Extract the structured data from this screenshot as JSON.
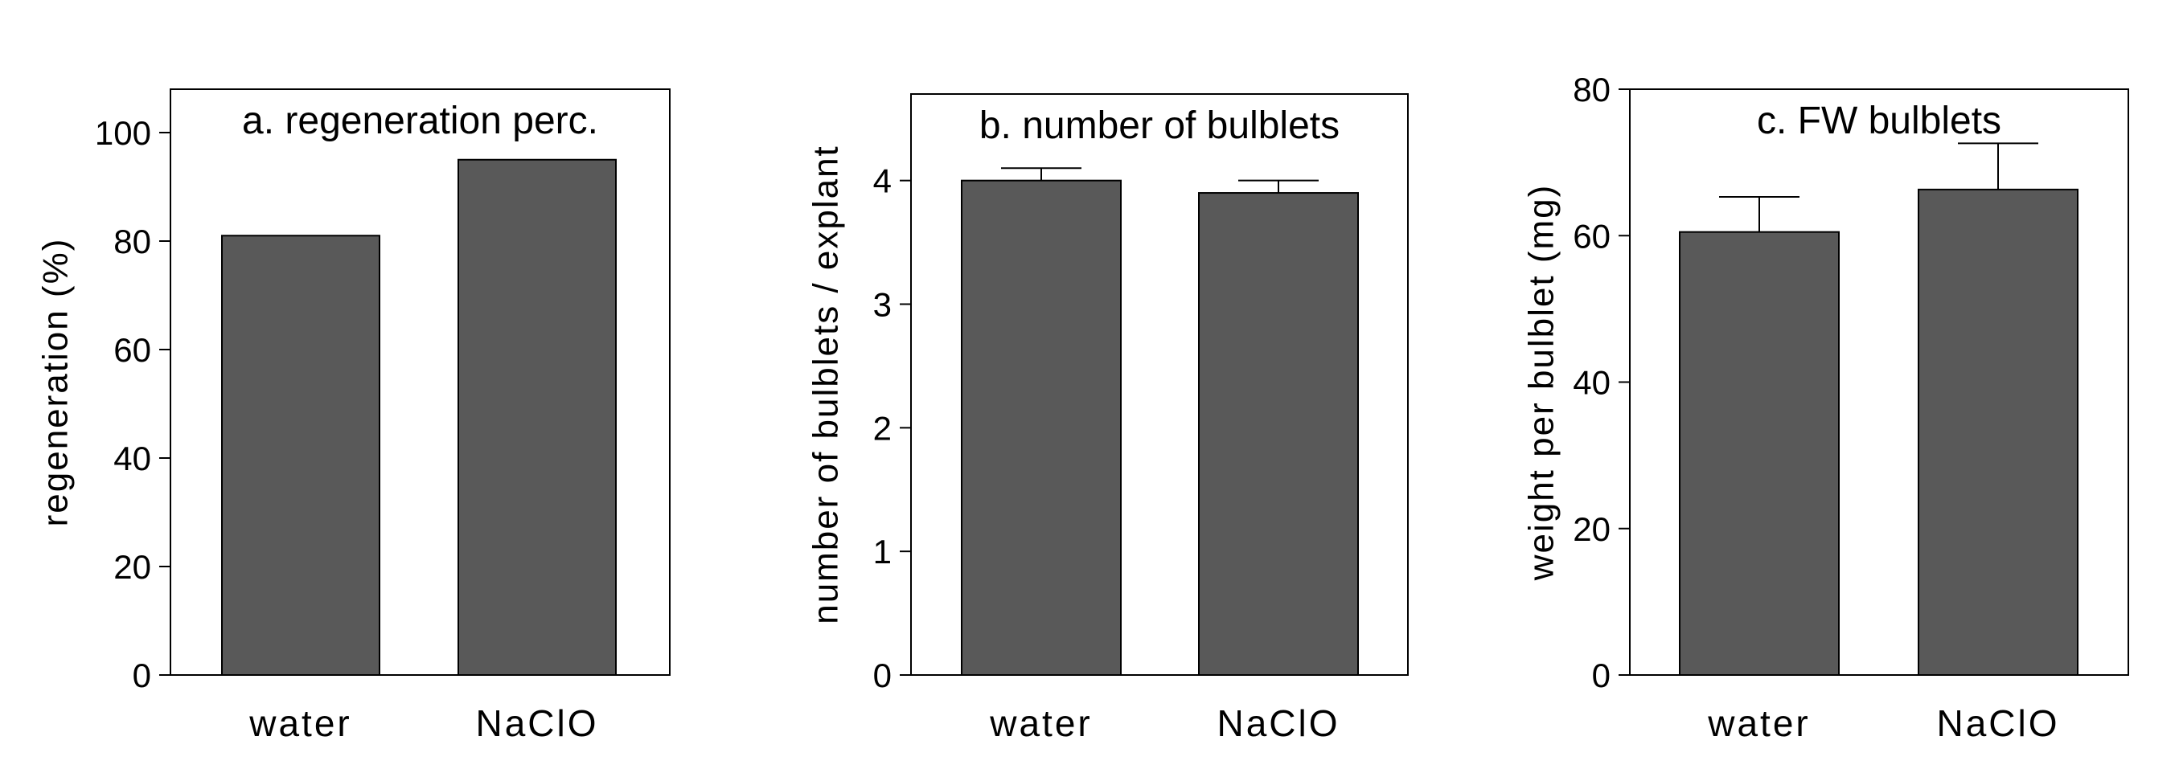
{
  "colors": {
    "bar": "#595959",
    "bar_edge": "#000000",
    "axis": "#000000",
    "background": "#ffffff"
  },
  "chart_data": [
    {
      "type": "bar",
      "title": "a. regeneration perc.",
      "ylabel": "regeneration (%)",
      "xlabel": "",
      "categories": [
        "water",
        "NaClO"
      ],
      "values": [
        81,
        95
      ],
      "errors": [
        null,
        null
      ],
      "ylim": [
        0,
        108
      ],
      "yticks": [
        0,
        20,
        40,
        60,
        80,
        100
      ],
      "ytick_labels": [
        "0",
        "20",
        "40",
        "60",
        "80",
        "100"
      ],
      "grid": false,
      "legend": "none"
    },
    {
      "type": "bar",
      "title": "b. number of bulblets",
      "ylabel": "number of bulblets / explant",
      "xlabel": "",
      "categories": [
        "water",
        "NaClO"
      ],
      "values": [
        4.0,
        3.9
      ],
      "errors": [
        0.1,
        0.1
      ],
      "ylim": [
        0,
        4.7
      ],
      "yticks": [
        0,
        1,
        2,
        3,
        4
      ],
      "ytick_labels": [
        "0",
        "1",
        "2",
        "3",
        "4"
      ],
      "grid": false,
      "legend": "none"
    },
    {
      "type": "bar",
      "title": "c. FW bulblets",
      "ylabel": "weight per bulblet (mg)",
      "xlabel": "",
      "categories": [
        "water",
        "NaClO"
      ],
      "values": [
        60.5,
        66.3
      ],
      "errors": [
        4.8,
        6.3
      ],
      "ylim": [
        0,
        80
      ],
      "yticks": [
        0,
        20,
        40,
        60,
        80
      ],
      "ytick_labels": [
        "0",
        "20",
        "40",
        "60",
        "80"
      ],
      "grid": false,
      "legend": "none"
    }
  ]
}
